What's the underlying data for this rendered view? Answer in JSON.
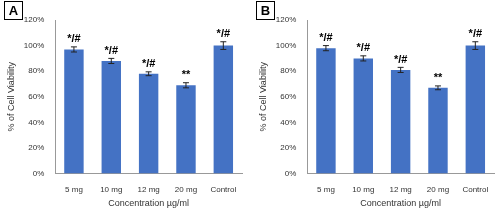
{
  "chart_data": [
    {
      "type": "bar",
      "title": "A",
      "categories": [
        "5 mg",
        "10 mg",
        "12 mg",
        "20 mg",
        "Control"
      ],
      "values": [
        97,
        88,
        78,
        69,
        100
      ],
      "errors": [
        2,
        2,
        1.5,
        2,
        3
      ],
      "annotations": [
        "*/#",
        "*/#",
        "*/#",
        "**",
        "*/#"
      ],
      "color": "#4472c4",
      "x_label": "Concentration µg/ml",
      "y_label": "% of Cell Viability",
      "ylim": [
        0,
        120
      ],
      "yticks": [
        {
          "value": 0,
          "label": "0%"
        },
        {
          "value": 20,
          "label": "20%"
        },
        {
          "value": 40,
          "label": "40%"
        },
        {
          "value": 60,
          "label": "60%"
        },
        {
          "value": 80,
          "label": "80%"
        },
        {
          "value": 100,
          "label": "100%"
        },
        {
          "value": 120,
          "label": "120%"
        }
      ],
      "grid": false
    },
    {
      "type": "bar",
      "title": "B",
      "categories": [
        "5 mg",
        "10 mg",
        "12 mg",
        "20 mg",
        "Control"
      ],
      "values": [
        98,
        90,
        81,
        67,
        100
      ],
      "errors": [
        2,
        2,
        2,
        1.5,
        3
      ],
      "annotations": [
        "*/#",
        "*/#",
        "*/#",
        "**",
        "*/#"
      ],
      "color": "#4472c4",
      "x_label": "Concentration µg/ml",
      "y_label": "% of Cell Viability",
      "ylim": [
        0,
        120
      ],
      "yticks": [
        {
          "value": 0,
          "label": "0%"
        },
        {
          "value": 20,
          "label": "20%"
        },
        {
          "value": 40,
          "label": "40%"
        },
        {
          "value": 60,
          "label": "60%"
        },
        {
          "value": 80,
          "label": "80%"
        },
        {
          "value": 100,
          "label": "100%"
        },
        {
          "value": 120,
          "label": "120%"
        }
      ],
      "grid": false
    }
  ]
}
